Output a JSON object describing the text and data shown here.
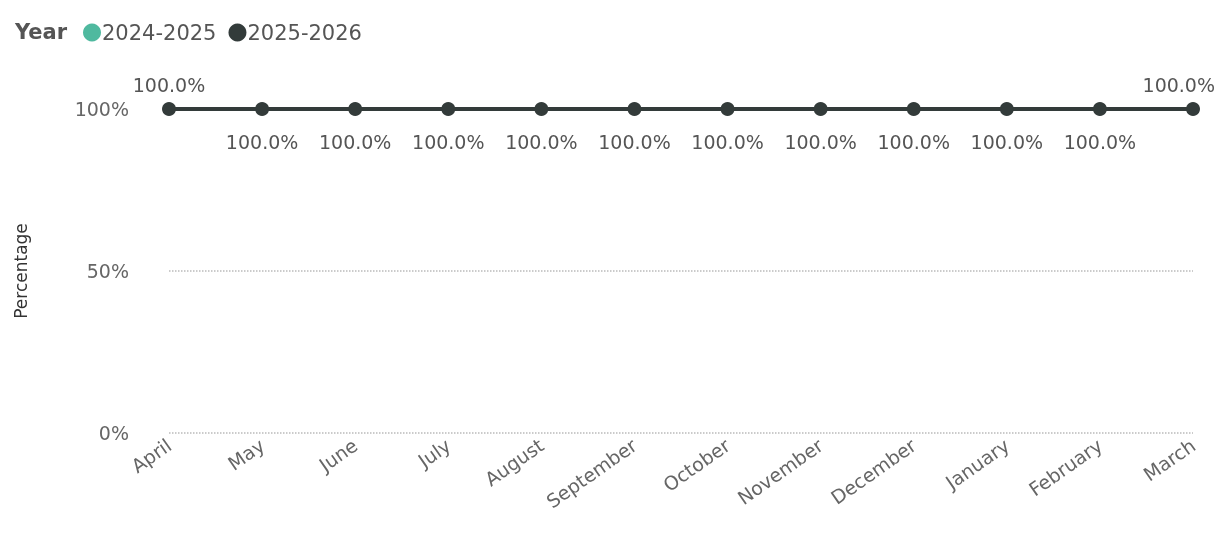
{
  "chart_data": {
    "type": "line",
    "ylabel": "Percentage",
    "legend_title": "Year",
    "legend": "top left",
    "grid": "y",
    "marker": "circle",
    "line_style": "solid",
    "categories": [
      "April",
      "May",
      "June",
      "July",
      "August",
      "September",
      "October",
      "November",
      "December",
      "January",
      "February",
      "March"
    ],
    "ylim": [
      0,
      100
    ],
    "yticks": [
      {
        "value": 0,
        "label": "0%"
      },
      {
        "value": 50,
        "label": "50%"
      },
      {
        "value": 100,
        "label": "100%"
      }
    ],
    "series": [
      {
        "name": "2024-2025",
        "color": "#4fb99f",
        "values": [
          null,
          null,
          null,
          null,
          null,
          null,
          null,
          null,
          null,
          null,
          null,
          null
        ]
      },
      {
        "name": "2025-2026",
        "color": "#333b3a",
        "values": [
          100,
          100,
          100,
          100,
          100,
          100,
          100,
          100,
          100,
          100,
          100,
          100
        ],
        "value_labels": [
          "100.0%",
          "100.0%",
          "100.0%",
          "100.0%",
          "100.0%",
          "100.0%",
          "100.0%",
          "100.0%",
          "100.0%",
          "100.0%",
          "100.0%",
          "100.0%"
        ]
      }
    ]
  }
}
